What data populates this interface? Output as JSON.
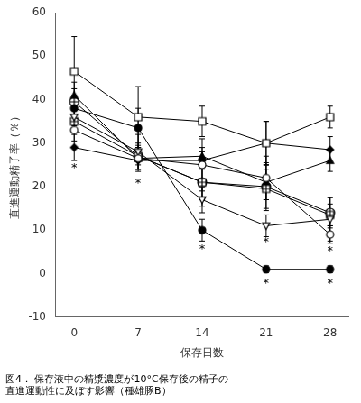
{
  "chart_data": {
    "type": "line",
    "xlabel": "保存日数",
    "ylabel": "直進運動精子率（％）",
    "caption": [
      "図4． 保存液中の精漿濃度が10°C保存後の精子の",
      "直進運動性に及ぼす影響（種雄豚B）"
    ],
    "x": [
      0,
      7,
      14,
      21,
      28
    ],
    "series": [
      {
        "values": [
          46.5,
          36.0,
          35.0,
          30.0,
          36.0
        ],
        "yerr": [
          8.0,
          7.0,
          3.5,
          5.0,
          2.5
        ],
        "color": "black",
        "marker": "open_square"
      },
      {
        "values": [
          38.0,
          33.5,
          10.0,
          1.0,
          1.0
        ],
        "yerr": [
          3.0,
          4.5,
          2.5,
          0.8,
          0.8
        ],
        "color": "black",
        "marker": "filled_circle"
      },
      {
        "values": [
          33.0,
          26.5,
          25.0,
          22.0,
          9.0
        ],
        "yerr": [
          2.5,
          3.0,
          6.0,
          5.0,
          2.0
        ],
        "color": "black",
        "marker": "open_circle"
      },
      {
        "values": [
          36.0,
          28.0,
          17.0,
          11.0,
          12.5
        ],
        "yerr": [
          2.0,
          4.0,
          3.0,
          2.5,
          5.0
        ],
        "color": "black",
        "marker": "open_triangle_down"
      },
      {
        "values": [
          35.0,
          27.0,
          21.0,
          19.5,
          13.5
        ],
        "yerr": [
          2.5,
          2.0,
          4.0,
          4.5,
          2.5
        ],
        "color": "black",
        "marker": "square_cross"
      },
      {
        "values": [
          41.0,
          26.5,
          27.0,
          21.0,
          26.0
        ],
        "yerr": [
          3.0,
          2.5,
          2.0,
          4.0,
          2.5
        ],
        "color": "black",
        "marker": "filled_triangle_up"
      },
      {
        "values": [
          39.5,
          27.0,
          21.0,
          20.0,
          14.0
        ],
        "yerr": [
          3.0,
          3.0,
          5.5,
          5.5,
          3.5
        ],
        "color": "black",
        "marker": "circle_plus"
      },
      {
        "values": [
          29.0,
          26.0,
          26.0,
          30.0,
          28.5
        ],
        "yerr": [
          3.0,
          2.0,
          2.0,
          5.0,
          3.0
        ],
        "color": "black",
        "marker": "filled_diamond"
      }
    ],
    "annotations": [
      {
        "text": "*",
        "x": 0,
        "y": 25.5
      },
      {
        "text": "*",
        "x": 7,
        "y": 22.0
      },
      {
        "text": "*",
        "x": 14,
        "y": 7.0
      },
      {
        "text": "*",
        "x": 21,
        "y": 8.5
      },
      {
        "text": "*",
        "x": 28,
        "y": 6.5
      },
      {
        "text": "*",
        "x": 21,
        "y": -1.0
      },
      {
        "text": "*",
        "x": 28,
        "y": -1.0
      }
    ],
    "xlim": [
      -2,
      30
    ],
    "xticks": [
      0,
      7,
      14,
      21,
      28
    ],
    "ylim": [
      -10,
      60
    ],
    "yticks": [
      -10,
      0,
      10,
      20,
      30,
      40,
      50,
      60
    ],
    "grid": false
  }
}
